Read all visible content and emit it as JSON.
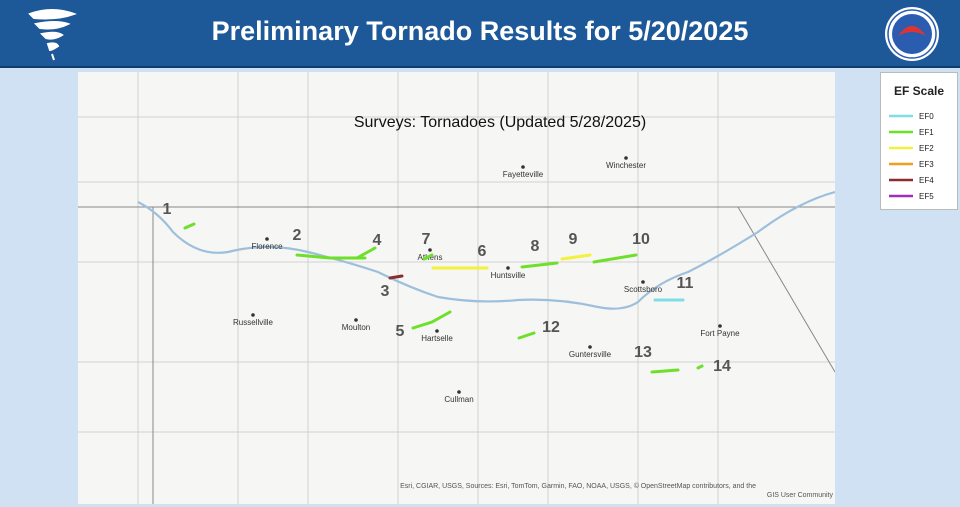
{
  "header": {
    "title": "Preliminary Tornado Results for 5/20/2025"
  },
  "map": {
    "subtitle": "Surveys: Tornadoes (Updated 5/28/2025)",
    "cities": [
      "Fayetteville",
      "Winchester",
      "Florence",
      "Athens",
      "Huntsville",
      "Scottsboro",
      "Russellville",
      "Moulton",
      "Hartselle",
      "Fort Payne",
      "Guntersville",
      "Cullman"
    ],
    "tracks": [
      {
        "label": "1",
        "rating": "EF1"
      },
      {
        "label": "2",
        "rating": "EF1"
      },
      {
        "label": "3",
        "rating": "EF4"
      },
      {
        "label": "4",
        "rating": "EF1"
      },
      {
        "label": "5",
        "rating": "EF1"
      },
      {
        "label": "6",
        "rating": "EF2"
      },
      {
        "label": "7",
        "rating": "EF1"
      },
      {
        "label": "8",
        "rating": "EF1"
      },
      {
        "label": "9",
        "rating": "EF2"
      },
      {
        "label": "10",
        "rating": "EF1"
      },
      {
        "label": "11",
        "rating": "EF0"
      },
      {
        "label": "12",
        "rating": "EF1"
      },
      {
        "label": "13",
        "rating": "EF1"
      },
      {
        "label": "14",
        "rating": "EF1"
      }
    ],
    "attribution": [
      "Esri, CGIAR, USGS, Sources: Esri, TomTom, Garmin, FAO, NOAA, USGS, © OpenStreetMap contributors, and the",
      "GIS User Community"
    ]
  },
  "legend": {
    "title": "EF Scale",
    "items": [
      {
        "label": "EF0",
        "color": "#7fdde6"
      },
      {
        "label": "EF1",
        "color": "#6fe02a"
      },
      {
        "label": "EF2",
        "color": "#f2f23a"
      },
      {
        "label": "EF3",
        "color": "#f0a020"
      },
      {
        "label": "EF4",
        "color": "#8b2d2d"
      },
      {
        "label": "EF5",
        "color": "#9a2fc0"
      }
    ]
  }
}
